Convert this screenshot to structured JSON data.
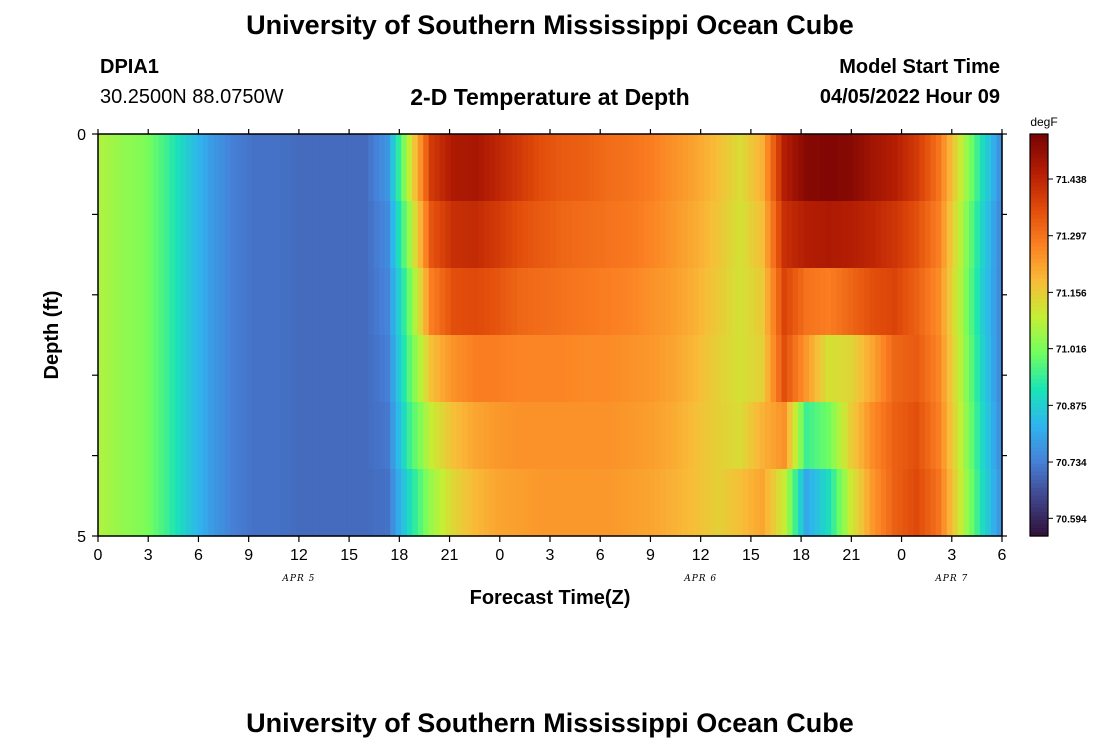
{
  "header": {
    "title": "University of Southern Mississippi Ocean Cube",
    "station": "DPIA1",
    "coords": "30.2500N  88.0750W",
    "subtitle": "2-D Temperature at Depth",
    "model_start_label": "Model Start Time",
    "model_start_value": "04/05/2022 Hour 09"
  },
  "footer": {
    "title": "University of Southern Mississippi Ocean Cube"
  },
  "chart_data": {
    "type": "heatmap",
    "xlabel": "Forecast Time(Z)",
    "ylabel": "Depth (ft)",
    "x_tick_labels": [
      "0",
      "3",
      "6",
      "9",
      "12",
      "15",
      "18",
      "21",
      "0",
      "3",
      "6",
      "9",
      "12",
      "15",
      "18",
      "21",
      "0",
      "3",
      "6"
    ],
    "x_range_hours": [
      0,
      54
    ],
    "date_labels": [
      {
        "label": "APR 5",
        "hour": 12
      },
      {
        "label": "APR 6",
        "hour": 36
      },
      {
        "label": "APR 7",
        "hour": 51
      }
    ],
    "y_tick_labels": [
      "0",
      "5"
    ],
    "ylim": [
      0,
      5
    ],
    "depth_layers_ft": [
      0,
      1,
      2,
      3,
      4,
      5
    ],
    "colorbar": {
      "unit": "degF",
      "tick_labels": [
        "70.594",
        "70.734",
        "70.875",
        "71.016",
        "71.156",
        "71.297",
        "71.438"
      ],
      "range": [
        70.55,
        71.55
      ]
    },
    "levels": [
      [
        71.07,
        71.04,
        71.02,
        70.95,
        70.86,
        70.78,
        70.73,
        70.71,
        70.71,
        70.7,
        70.7,
        70.7,
        70.7,
        70.77,
        71.1,
        71.4,
        71.47,
        71.48,
        71.44,
        71.4,
        71.36,
        71.34,
        71.33,
        71.31,
        71.3,
        71.28,
        71.25,
        71.22,
        71.18,
        71.13,
        71.2,
        71.46,
        71.53,
        71.54,
        71.53,
        71.49,
        71.46,
        71.4,
        71.3,
        71.1,
        70.9,
        70.72
      ],
      [
        71.07,
        71.04,
        71.02,
        70.95,
        70.86,
        70.78,
        70.73,
        70.71,
        70.71,
        70.7,
        70.7,
        70.7,
        70.7,
        70.75,
        71.05,
        71.35,
        71.42,
        71.43,
        71.4,
        71.36,
        71.34,
        71.32,
        71.31,
        71.3,
        71.29,
        71.27,
        71.24,
        71.21,
        71.17,
        71.12,
        71.18,
        71.42,
        71.46,
        71.47,
        71.46,
        71.44,
        71.41,
        71.36,
        71.28,
        71.08,
        70.88,
        70.71
      ],
      [
        71.07,
        71.04,
        71.02,
        70.95,
        70.86,
        70.78,
        70.73,
        70.71,
        70.71,
        70.7,
        70.7,
        70.7,
        70.7,
        70.74,
        71.0,
        71.28,
        71.36,
        71.37,
        71.35,
        71.32,
        71.31,
        71.3,
        71.29,
        71.28,
        71.27,
        71.25,
        71.23,
        71.2,
        71.16,
        71.12,
        71.16,
        71.38,
        71.3,
        71.28,
        71.32,
        71.36,
        71.38,
        71.33,
        71.26,
        71.07,
        70.87,
        70.71
      ],
      [
        71.07,
        71.04,
        71.02,
        70.95,
        70.86,
        70.78,
        70.73,
        70.71,
        70.71,
        70.7,
        70.7,
        70.7,
        70.7,
        70.73,
        70.98,
        71.18,
        71.25,
        71.28,
        71.28,
        71.27,
        71.27,
        71.27,
        71.26,
        71.26,
        71.25,
        71.24,
        71.22,
        71.19,
        71.15,
        71.12,
        71.15,
        71.36,
        71.24,
        71.12,
        71.14,
        71.22,
        71.32,
        71.34,
        71.27,
        71.08,
        70.88,
        70.71
      ],
      [
        71.07,
        71.04,
        71.02,
        70.95,
        70.86,
        70.78,
        70.73,
        70.71,
        70.71,
        70.7,
        70.7,
        70.7,
        70.7,
        70.72,
        70.95,
        71.1,
        71.18,
        71.22,
        71.24,
        71.25,
        71.25,
        71.25,
        71.25,
        71.25,
        71.24,
        71.23,
        71.21,
        71.18,
        71.15,
        71.13,
        71.2,
        71.25,
        70.95,
        71.0,
        71.15,
        71.26,
        71.33,
        71.36,
        71.28,
        71.09,
        70.89,
        70.72
      ],
      [
        71.07,
        71.04,
        71.02,
        70.95,
        70.86,
        70.78,
        70.73,
        70.71,
        70.71,
        70.7,
        70.7,
        70.7,
        70.7,
        70.71,
        70.9,
        71.05,
        71.14,
        71.19,
        71.22,
        71.23,
        71.24,
        71.24,
        71.24,
        71.24,
        71.23,
        71.22,
        71.2,
        71.18,
        71.15,
        71.18,
        71.22,
        71.1,
        70.8,
        70.9,
        71.1,
        71.24,
        71.33,
        71.37,
        71.3,
        71.1,
        70.9,
        70.73
      ]
    ]
  },
  "colors": {
    "ramp": [
      "#30123b",
      "#40458c",
      "#4680d8",
      "#2fb5ee",
      "#1ae4b6",
      "#71fe5f",
      "#c5ef34",
      "#f9bb38",
      "#fb8022",
      "#e04a0a",
      "#b41d03",
      "#7a0403"
    ]
  }
}
